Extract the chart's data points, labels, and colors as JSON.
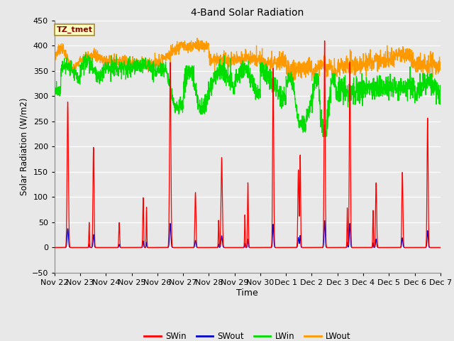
{
  "title": "4-Band Solar Radiation",
  "xlabel": "Time",
  "ylabel": "Solar Radiation (W/m2)",
  "annotation": "TZ_tmet",
  "ylim": [
    -50,
    450
  ],
  "colors": {
    "SWin": "#ff0000",
    "SWout": "#0000cc",
    "LWin": "#00dd00",
    "LWout": "#ff9900"
  },
  "fig_bg": "#e8e8e8",
  "ax_bg": "#e8e8e8",
  "xtick_labels": [
    "Nov 22",
    "Nov 23",
    "Nov 24",
    "Nov 25",
    "Nov 26",
    "Nov 27",
    "Nov 28",
    "Nov 29",
    "Nov 30",
    "Dec 1",
    "Dec 2",
    "Dec 3",
    "Dec 4",
    "Dec 5",
    "Dec 6",
    "Dec 7"
  ],
  "num_days": 15,
  "pts_per_day": 144,
  "seed": 42
}
